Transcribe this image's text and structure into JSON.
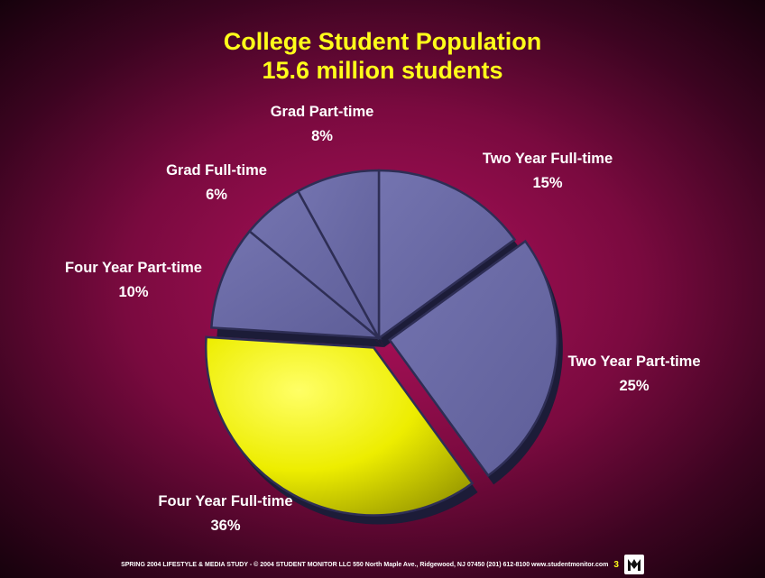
{
  "chart_data": {
    "type": "pie",
    "title": "College Student Population",
    "subtitle": "15.6 million students",
    "slices": [
      {
        "label": "Two Year Full-time",
        "value": 15,
        "value_label": "15%",
        "color": "#6c6ca8",
        "exploded": false
      },
      {
        "label": "Two Year Part-time",
        "value": 25,
        "value_label": "25%",
        "color": "#6c6ca8",
        "exploded": true
      },
      {
        "label": "Four Year Full-time",
        "value": 36,
        "value_label": "36%",
        "color": "#e8e800",
        "exploded": true
      },
      {
        "label": "Four Year Part-time",
        "value": 10,
        "value_label": "10%",
        "color": "#6c6ca8",
        "exploded": false
      },
      {
        "label": "Grad Full-time",
        "value": 6,
        "value_label": "6%",
        "color": "#6c6ca8",
        "exploded": false
      },
      {
        "label": "Grad Part-time",
        "value": 8,
        "value_label": "8%",
        "color": "#6c6ca8",
        "exploded": false
      }
    ]
  },
  "footer": {
    "text": "SPRING 2004 LIFESTYLE & MEDIA STUDY - © 2004 STUDENT MONITOR LLC 550 North Maple Ave., Ridgewood, NJ 07450  (201) 612-8100  www.studentmonitor.com",
    "page_number": "3"
  },
  "colors": {
    "title": "#ffff1a",
    "label": "#ffffff",
    "background": "#7a0a3f"
  }
}
